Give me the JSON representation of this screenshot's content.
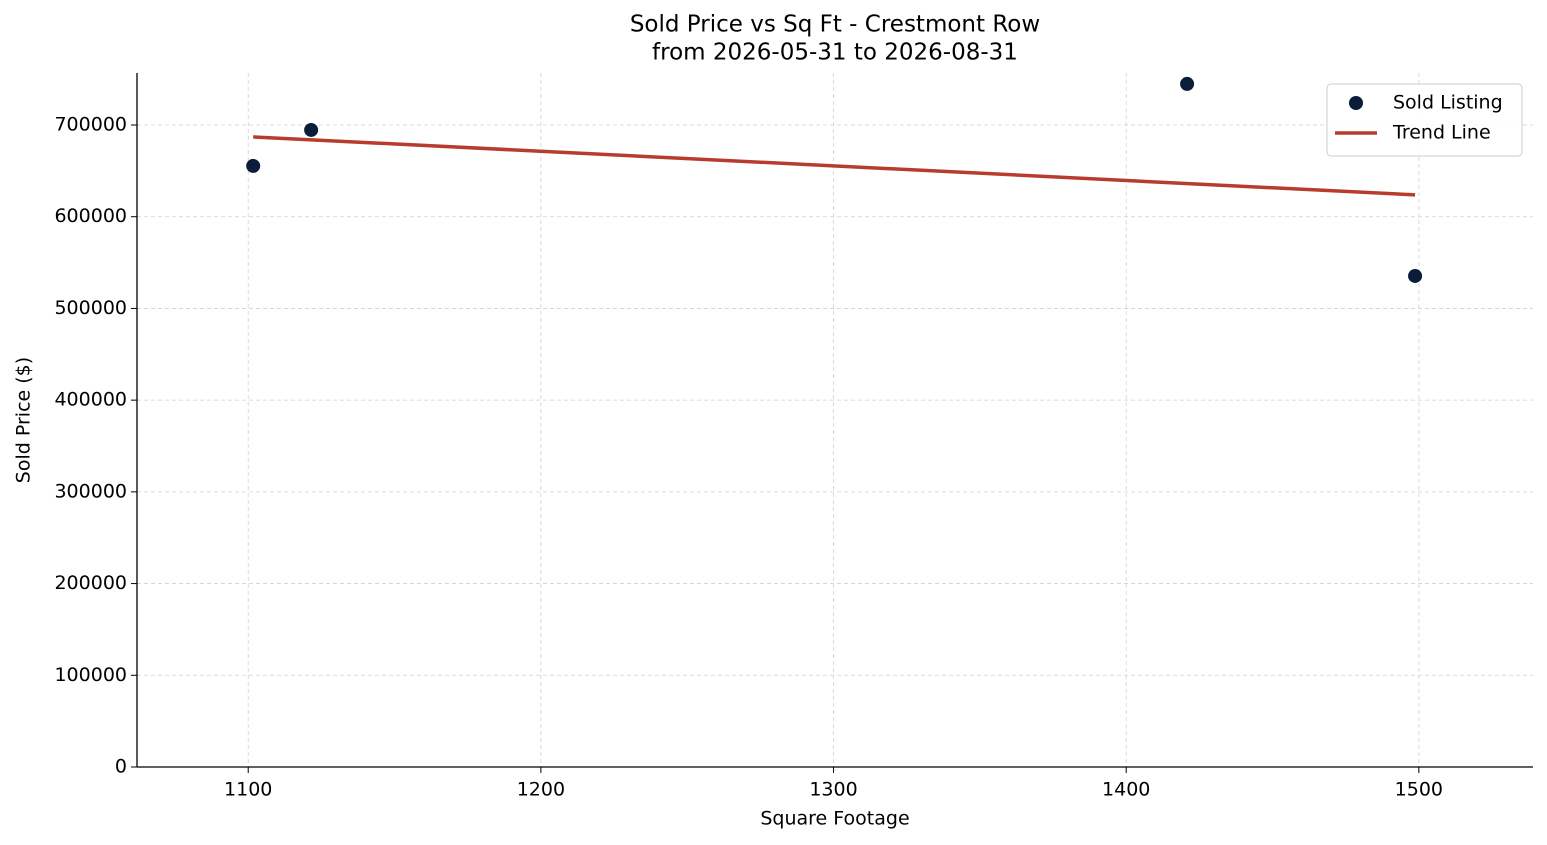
{
  "chart_data": {
    "type": "scatter",
    "title": "Sold Price vs Sq Ft - Crestmont Row",
    "subtitle": "from 2026-05-31 to 2026-08-31",
    "x_label": "Square Footage",
    "y_label": "Sold Price ($)",
    "xlim": [
      1062,
      1539
    ],
    "xticks": [
      1100,
      1200,
      1300,
      1400,
      1500
    ],
    "ylim": [
      0,
      756700
    ],
    "yticks": [
      0,
      100000,
      200000,
      300000,
      400000,
      500000,
      600000,
      700000
    ],
    "grid": true,
    "legend": "upper right",
    "series": [
      {
        "name": "Sold Listing",
        "type": "scatter",
        "color": "#0b1d38",
        "x": [
          1101.7,
          1121.5,
          1420.8,
          1498.7
        ],
        "values": [
          655400,
          694600,
          744800,
          535400
        ]
      },
      {
        "name": "Trend Line",
        "type": "line",
        "color": "#b83c2e",
        "x": [
          1101.7,
          1498.7
        ],
        "values": [
          687000,
          623800
        ]
      }
    ]
  }
}
